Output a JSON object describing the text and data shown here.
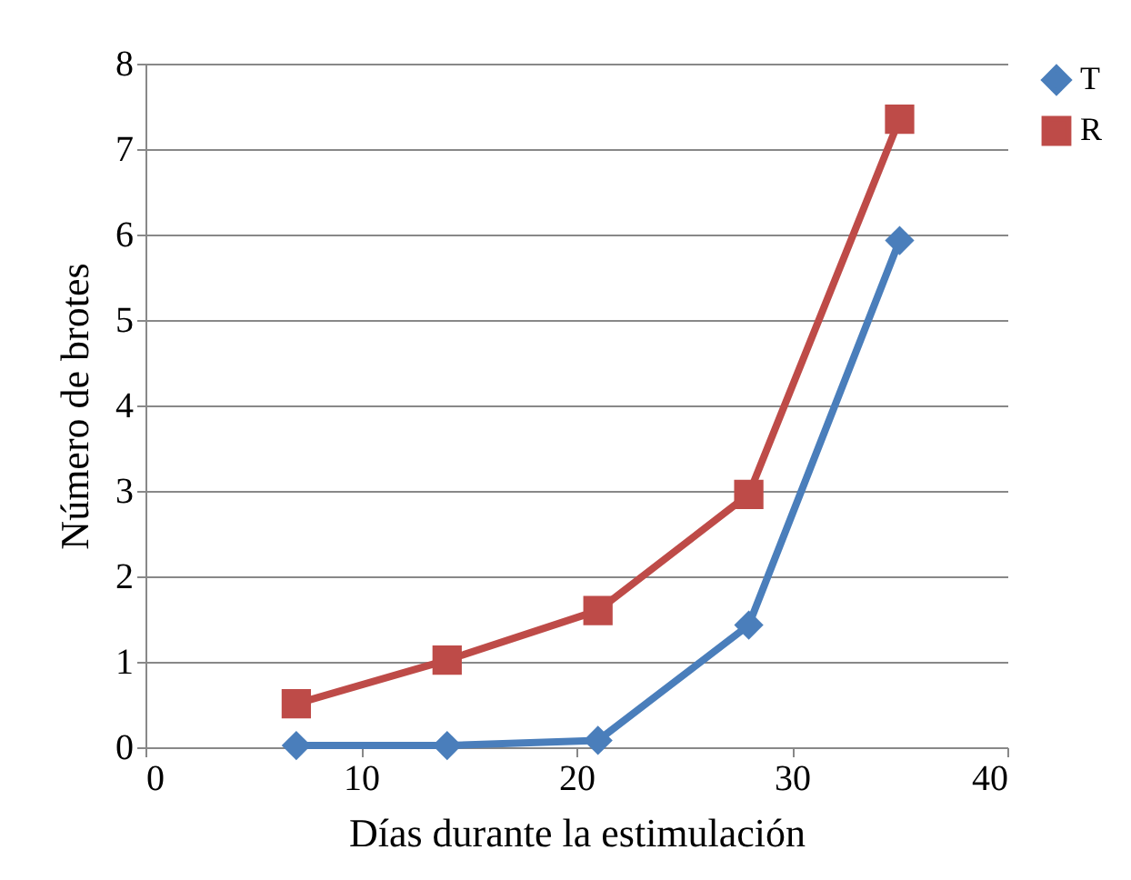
{
  "chart_data": {
    "type": "line",
    "xlabel": "Días durante  la estimulación",
    "ylabel": "Número de brotes",
    "x": [
      7,
      14,
      21,
      28,
      35
    ],
    "series": [
      {
        "name": "T",
        "color": "#4a7ebb",
        "marker": "diamond",
        "values": [
          0.02,
          0.02,
          0.08,
          1.43,
          5.93
        ]
      },
      {
        "name": "R",
        "color": "#be4b48",
        "marker": "square",
        "values": [
          0.51,
          1.02,
          1.6,
          2.96,
          7.35
        ]
      }
    ],
    "xlim": [
      0,
      40
    ],
    "xticks": [
      0,
      10,
      20,
      30,
      40
    ],
    "ylim": [
      0,
      8
    ],
    "yticks": [
      0,
      1,
      2,
      3,
      4,
      5,
      6,
      7,
      8
    ],
    "grid": "y",
    "legend": "right",
    "line_style": "solid"
  }
}
